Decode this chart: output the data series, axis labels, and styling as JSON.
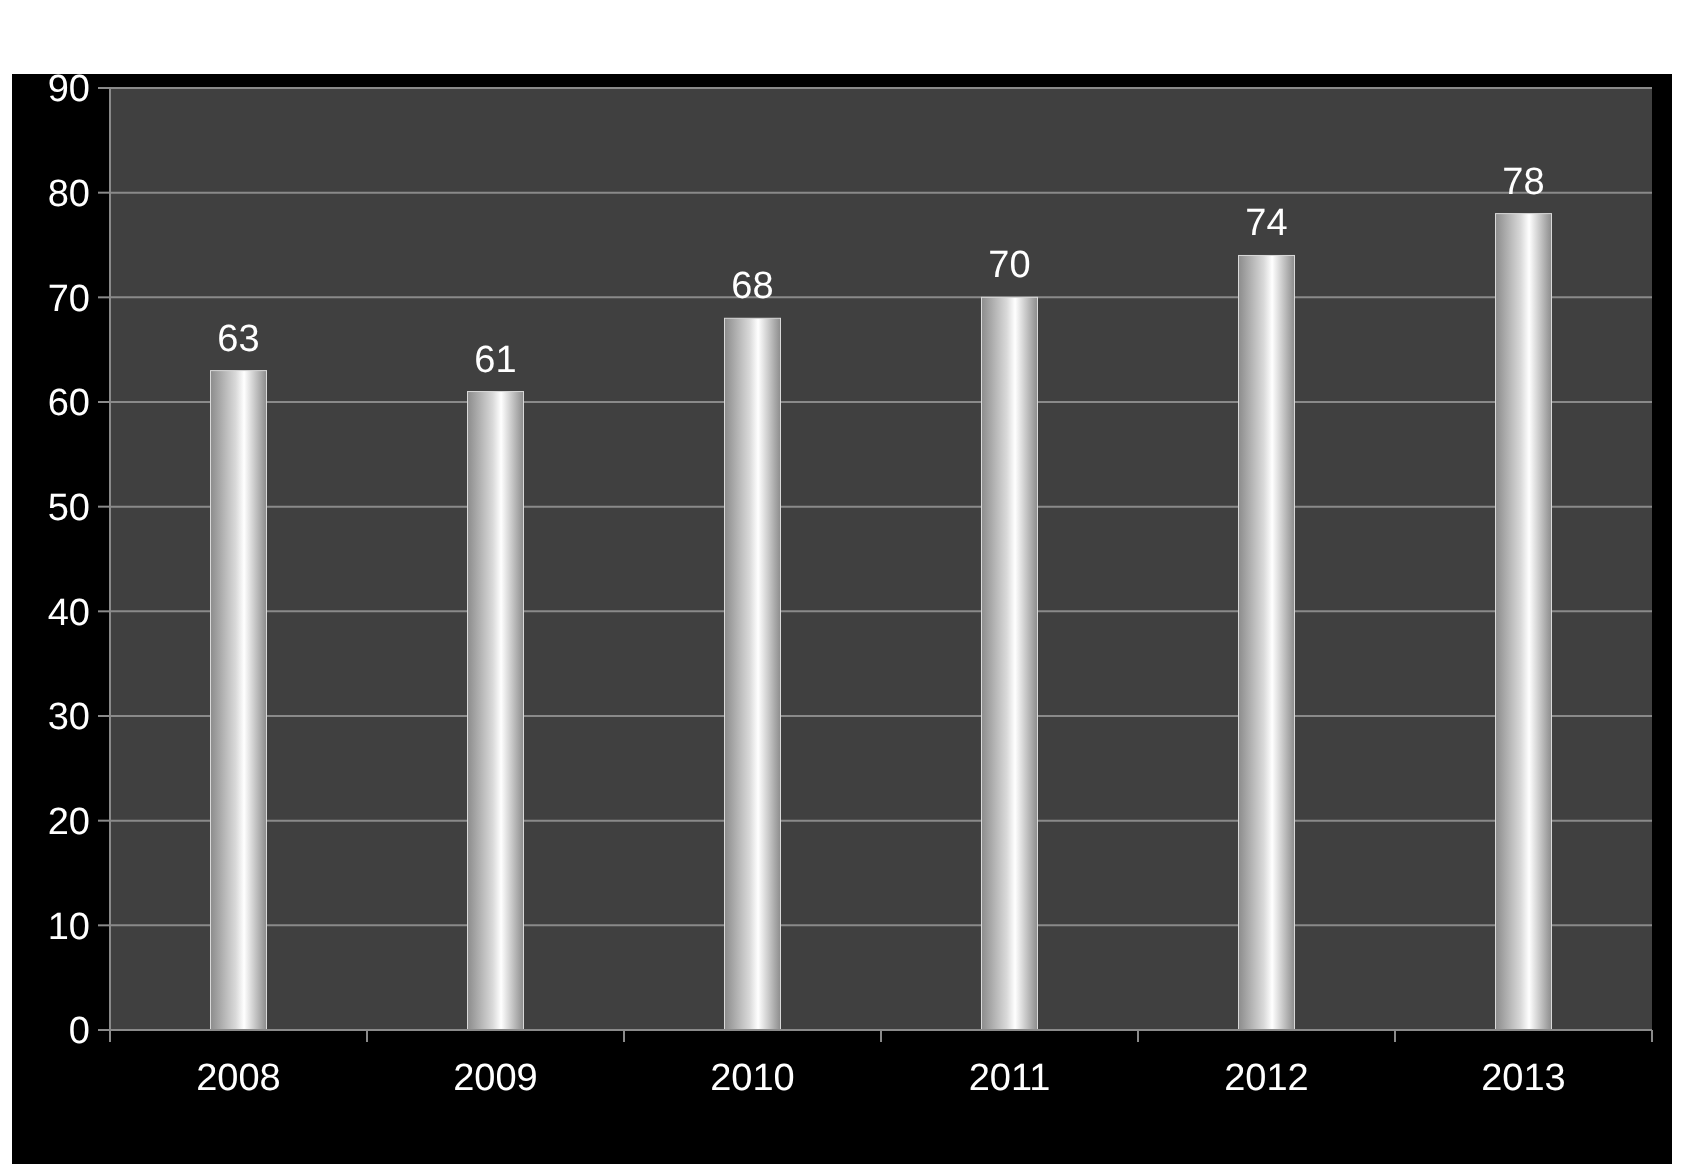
{
  "chart_data": {
    "type": "bar",
    "categories": [
      "2008",
      "2009",
      "2010",
      "2011",
      "2012",
      "2013"
    ],
    "values": [
      63,
      61,
      68,
      70,
      74,
      78
    ],
    "color": "#d9d9d9",
    "ylim": [
      0,
      90
    ],
    "yticks": [
      0,
      10,
      20,
      30,
      40,
      50,
      60,
      70,
      80,
      90
    ],
    "grid": "y",
    "data_labels": true
  }
}
